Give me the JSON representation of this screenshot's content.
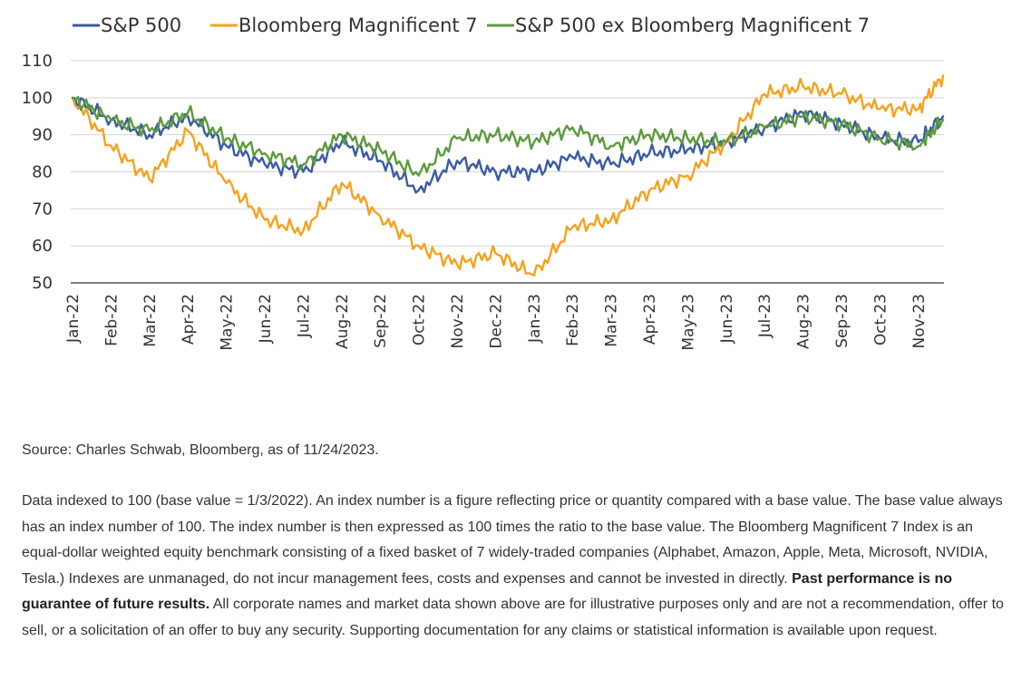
{
  "chart_data": {
    "type": "line",
    "title": "",
    "xlabel": "",
    "ylabel": "",
    "ylim": [
      50,
      110
    ],
    "yticks": [
      "110",
      "100",
      "90",
      "80",
      "70",
      "60",
      "50"
    ],
    "grid": "horizontal",
    "legend_position": "top",
    "x_tick_labels": [
      "Jan-22",
      "Feb-22",
      "Mar-22",
      "Apr-22",
      "May-22",
      "Jun-22",
      "Jul-22",
      "Aug-22",
      "Sep-22",
      "Oct-22",
      "Nov-22",
      "Dec-22",
      "Jan-23",
      "Feb-23",
      "Mar-23",
      "Apr-23",
      "May-23",
      "Jun-23",
      "Jul-23",
      "Aug-23",
      "Sep-23",
      "Oct-23",
      "Nov-23"
    ],
    "x": [
      "Jan-22",
      "Feb-22",
      "Mar-22",
      "Apr-22",
      "May-22",
      "Jun-22",
      "Jul-22",
      "Aug-22",
      "Sep-22",
      "Oct-22",
      "Nov-22",
      "Dec-22",
      "Jan-23",
      "Feb-23",
      "Mar-23",
      "Apr-23",
      "May-23",
      "Jun-23",
      "Jul-23",
      "Aug-23",
      "Sep-23",
      "Oct-23",
      "Nov-23",
      "Nov-24-23"
    ],
    "series": [
      {
        "name": "S&P 500",
        "color": "#3b5ba5",
        "values": [
          100,
          94,
          90,
          95,
          87,
          82,
          80,
          88,
          83,
          75,
          83,
          80,
          80,
          84,
          82,
          85,
          86,
          88,
          92,
          96,
          93,
          89,
          88,
          95
        ]
      },
      {
        "name": "Bloomberg Magnificent 7",
        "color": "#f5a21f",
        "values": [
          100,
          87,
          78,
          91,
          77,
          67,
          64,
          77,
          68,
          60,
          55,
          58,
          52,
          65,
          67,
          75,
          79,
          88,
          101,
          103,
          101,
          97,
          97,
          106
        ]
      },
      {
        "name": "S&P 500 ex Bloomberg Magnificent 7",
        "color": "#5c9a3d",
        "values": [
          100,
          94,
          91,
          96,
          89,
          85,
          82,
          90,
          86,
          79,
          89,
          90,
          88,
          92,
          87,
          90,
          89,
          88,
          92,
          95,
          93,
          89,
          87,
          94
        ]
      }
    ]
  },
  "source_text": "Source: Charles Schwab, Bloomberg, as of 11/24/2023.",
  "notes": {
    "text_before_bold": "Data indexed to 100 (base value = 1/3/2022). An index number is a figure reflecting price or quantity compared with a base value. The base value always has an index number of 100. The index number is then expressed as 100 times the ratio to the base value. The Bloomberg Magnificent 7 Index is an equal-dollar weighted equity benchmark consisting of a fixed basket of 7 widely-traded companies (Alphabet, Amazon, Apple, Meta, Microsoft, NVIDIA, Tesla.)  Indexes are unmanaged, do not incur management fees, costs and expenses and cannot be invested in directly.",
    "bold_text": "Past performance is no guarantee of future results.",
    "text_after_bold": "All corporate names and market data shown above are for illustrative purposes only and are not a recommendation, offer to sell, or a solicitation of an offer to buy any security. Supporting documentation for any claims or statistical information is available upon request."
  }
}
